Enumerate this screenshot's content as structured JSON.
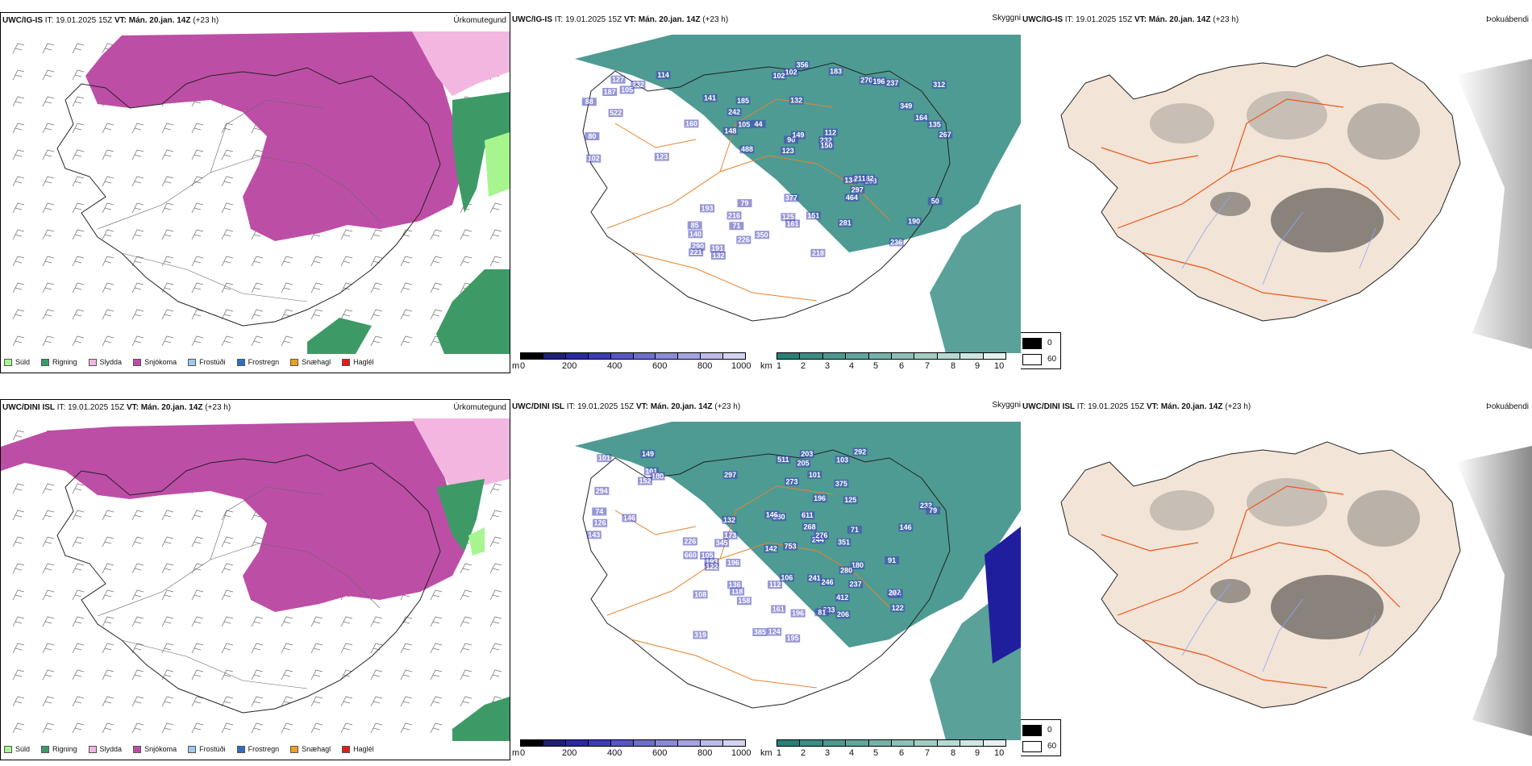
{
  "rows": [
    {
      "header": {
        "model": "UWC/IG-IS",
        "it_label": "IT:",
        "it_value": "19.01.2025 15Z",
        "vt_label": "VT:",
        "vt_value": "Mán. 20.jan. 14Z",
        "lead": "(+23 h)"
      },
      "cloudbase_numbers": [
        "123",
        "88",
        "114",
        "522",
        "232",
        "102",
        "127",
        "105",
        "80",
        "187",
        "140",
        "71",
        "132",
        "112",
        "108",
        "141",
        "102",
        "267",
        "134",
        "164",
        "123",
        "125",
        "90",
        "185",
        "270",
        "79",
        "236",
        "190",
        "182",
        "218",
        "44",
        "148",
        "464",
        "226",
        "135",
        "232",
        "290",
        "161",
        "150",
        "193",
        "349",
        "312",
        "297",
        "281",
        "216",
        "132",
        "221",
        "151",
        "237",
        "356",
        "488",
        "160",
        "242",
        "196",
        "191",
        "183",
        "102",
        "149",
        "50",
        "377",
        "350",
        "211",
        "105",
        "85"
      ]
    },
    {
      "header": {
        "model": "UWC/DINI ISL",
        "it_label": "IT:",
        "it_value": "19.01.2025 15Z",
        "vt_label": "VT:",
        "vt_value": "Mán. 20.jan. 14Z",
        "lead": "(+23 h)"
      },
      "cloudbase_numbers": [
        "143",
        "149",
        "101",
        "101",
        "146",
        "294",
        "74",
        "126",
        "180",
        "152",
        "105",
        "203",
        "237",
        "244",
        "195",
        "511",
        "122",
        "226",
        "118",
        "124",
        "206",
        "205",
        "273",
        "276",
        "268",
        "161",
        "193",
        "103",
        "196",
        "180",
        "132",
        "158",
        "233",
        "241",
        "304",
        "122",
        "232",
        "351",
        "125",
        "91",
        "79",
        "101",
        "196",
        "196",
        "660",
        "173",
        "280",
        "81",
        "112",
        "412",
        "280",
        "385",
        "611",
        "146",
        "142",
        "246",
        "146",
        "207",
        "297",
        "345",
        "319",
        "292",
        "375",
        "753",
        "106",
        "108",
        "136",
        "71"
      ]
    }
  ],
  "precip_title": "Úrkomutegund",
  "visibility_title": "Skyggni",
  "fog_title": "Þokuábendi",
  "precip_legend": [
    {
      "label": "Súld",
      "color": "#a6f58f"
    },
    {
      "label": "Rigning",
      "color": "#3d9a67"
    },
    {
      "label": "Slydda",
      "color": "#f2b6e0"
    },
    {
      "label": "Snjókoma",
      "color": "#bd4ea6"
    },
    {
      "label": "Frostúði",
      "color": "#9cc9f0"
    },
    {
      "label": "Frostregn",
      "color": "#2e6fbd"
    },
    {
      "label": "Snæhagl",
      "color": "#f0a020"
    },
    {
      "label": "Haglél",
      "color": "#e41a1c"
    }
  ],
  "cloudbase_scale": {
    "unit": "m",
    "ticks": [
      "0",
      "200",
      "400",
      "600",
      "800",
      "1000"
    ],
    "colors": [
      "#000000",
      "#1f1f7a",
      "#2a2a9e",
      "#3c3cb4",
      "#5656c4",
      "#6e6ecf",
      "#8a8ad8",
      "#a4a4e2",
      "#bcbcea",
      "#d4d4f2"
    ]
  },
  "visibility_scale": {
    "unit": "km",
    "ticks": [
      "1",
      "2",
      "3",
      "4",
      "5",
      "6",
      "7",
      "8",
      "9",
      "10"
    ],
    "colors": [
      "#2a7f78",
      "#3a8c84",
      "#4d9890",
      "#62a59d",
      "#77b2aa",
      "#8dbfb7",
      "#a3ccc5",
      "#b9d9d3",
      "#cfe6e1",
      "#e6f2f0"
    ]
  },
  "fog_scale": {
    "top": "0",
    "bottom": "60",
    "top_color": "#000000",
    "bottom_color": "#ffffff"
  },
  "colors": {
    "snow": "#bd4ea6",
    "sleet": "#f2b6e0",
    "rain": "#3d9a67",
    "drizzle": "#a6f58f",
    "land": "#f2e4d6",
    "roads": "#e8571e",
    "rivers": "#8fa9f5",
    "vis_sea": "#2f8a80"
  }
}
